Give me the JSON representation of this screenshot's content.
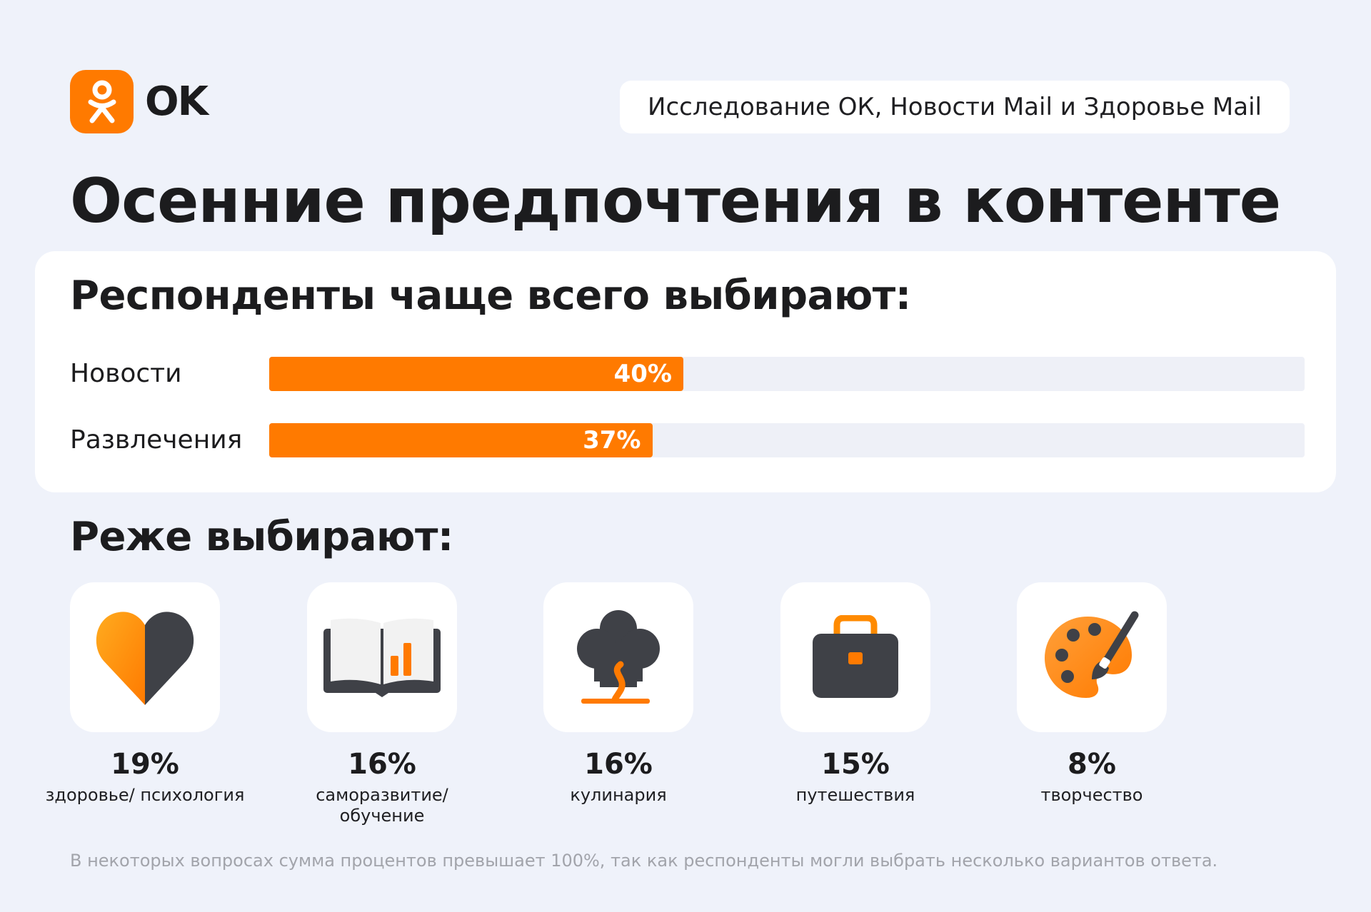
{
  "brand": {
    "logo_text": "OK",
    "accent_color": "#ff7a00",
    "dark_color": "#3f4147",
    "logo_icon": "ok-person-icon"
  },
  "source_label": "Исследование ОК, Новости Mail и Здоровье Mail",
  "title": "Осенние предпочтения в контенте",
  "footnote": "В некоторых вопросах сумма процентов превышает 100%, так как респонденты могли выбрать несколько вариантов ответа.",
  "chart_data": [
    {
      "type": "bar",
      "orientation": "horizontal",
      "title": "Респонденты чаще всего выбирают:",
      "categories": [
        "Новости",
        "Развлечения"
      ],
      "values": [
        40,
        37
      ],
      "value_labels": [
        "40%",
        "37%"
      ],
      "unit": "%",
      "xlim": [
        0,
        100
      ]
    },
    {
      "type": "table",
      "title": "Реже выбирают:",
      "items": [
        {
          "value": 19,
          "value_label": "19%",
          "label": "здоровье/ психология",
          "icon": "heart-icon"
        },
        {
          "value": 16,
          "value_label": "16%",
          "label": "саморазвитие/ обучение",
          "icon": "open-book-chart-icon"
        },
        {
          "value": 16,
          "value_label": "16%",
          "label": "кулинария",
          "icon": "chef-hat-icon"
        },
        {
          "value": 15,
          "value_label": "15%",
          "label": "путешествия",
          "icon": "briefcase-icon"
        },
        {
          "value": 8,
          "value_label": "8%",
          "label": "творчество",
          "icon": "palette-brush-icon"
        }
      ]
    }
  ]
}
